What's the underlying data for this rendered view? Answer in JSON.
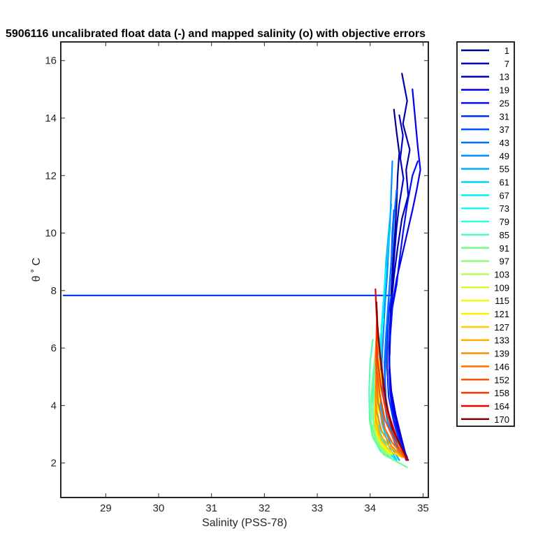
{
  "chart_data": {
    "type": "line",
    "title": "5906116 uncalibrated float data (-) and mapped salinity (o) with objective errors",
    "xlabel": "Salinity (PSS-78)",
    "ylabel": "θ ˚ C",
    "xlim": [
      28.15,
      35.1
    ],
    "ylim": [
      0.8,
      16.65
    ],
    "xticks": [
      29,
      30,
      31,
      32,
      33,
      34,
      35
    ],
    "yticks": [
      2,
      4,
      6,
      8,
      10,
      12,
      14,
      16
    ],
    "grid": false,
    "legend_position": "outside-right",
    "series": [
      {
        "name": "1",
        "color": "#00008f",
        "points": [
          [
            34.45,
            14.3
          ],
          [
            34.5,
            13.5
          ],
          [
            34.55,
            12.8
          ],
          [
            34.52,
            12.0
          ],
          [
            34.5,
            11.0
          ],
          [
            34.47,
            10.0
          ],
          [
            34.43,
            9.0
          ],
          [
            34.4,
            8.0
          ],
          [
            34.38,
            7.0
          ],
          [
            34.36,
            6.0
          ],
          [
            34.37,
            5.0
          ],
          [
            34.42,
            4.0
          ],
          [
            34.55,
            3.0
          ],
          [
            34.65,
            2.4
          ]
        ]
      },
      {
        "name": "7",
        "color": "#0000af",
        "points": [
          [
            34.6,
            15.55
          ],
          [
            34.7,
            14.6
          ],
          [
            34.62,
            13.8
          ],
          [
            34.75,
            12.9
          ],
          [
            34.68,
            12.2
          ],
          [
            34.72,
            11.3
          ],
          [
            34.6,
            10.5
          ],
          [
            34.52,
            9.5
          ],
          [
            34.45,
            8.5
          ],
          [
            34.4,
            7.5
          ],
          [
            34.38,
            6.5
          ],
          [
            34.36,
            5.5
          ],
          [
            34.4,
            4.5
          ],
          [
            34.5,
            3.5
          ],
          [
            34.62,
            2.6
          ],
          [
            34.68,
            2.2
          ]
        ]
      },
      {
        "name": "13",
        "color": "#0000cf",
        "points": [
          [
            34.55,
            14.1
          ],
          [
            34.62,
            13.4
          ],
          [
            34.57,
            12.6
          ],
          [
            34.63,
            11.9
          ],
          [
            34.55,
            11.0
          ],
          [
            34.5,
            10.2
          ],
          [
            34.46,
            9.3
          ],
          [
            34.42,
            8.3
          ],
          [
            34.39,
            7.2
          ],
          [
            34.37,
            6.2
          ],
          [
            34.36,
            5.2
          ],
          [
            34.4,
            4.2
          ],
          [
            34.52,
            3.2
          ],
          [
            34.66,
            2.3
          ]
        ]
      },
      {
        "name": "19",
        "color": "#0000ef",
        "points": [
          [
            34.8,
            15.0
          ],
          [
            34.85,
            14.0
          ],
          [
            34.9,
            13.0
          ],
          [
            34.95,
            12.2
          ],
          [
            34.88,
            11.5
          ],
          [
            34.8,
            10.8
          ],
          [
            34.7,
            10.0
          ],
          [
            34.6,
            9.2
          ],
          [
            34.5,
            8.4
          ],
          [
            34.42,
            7.5
          ],
          [
            34.38,
            6.6
          ],
          [
            34.36,
            5.6
          ],
          [
            34.38,
            4.7
          ],
          [
            34.48,
            3.7
          ],
          [
            34.6,
            2.8
          ],
          [
            34.7,
            2.1
          ]
        ]
      },
      {
        "name": "25",
        "color": "#000fff",
        "points": [
          [
            34.9,
            12.5
          ],
          [
            34.8,
            12.0
          ],
          [
            34.7,
            11.0
          ],
          [
            34.62,
            10.0
          ],
          [
            34.55,
            9.0
          ],
          [
            34.5,
            8.2
          ],
          [
            34.42,
            7.4
          ],
          [
            34.38,
            6.4
          ],
          [
            34.36,
            5.4
          ],
          [
            34.38,
            4.4
          ],
          [
            34.45,
            3.5
          ],
          [
            34.58,
            2.7
          ],
          [
            34.7,
            2.2
          ]
        ]
      },
      {
        "name": "31",
        "color": "#002fff",
        "points": [
          [
            28.2,
            7.83
          ],
          [
            34.4,
            7.83
          ],
          [
            34.35,
            7.2
          ],
          [
            34.33,
            6.3
          ],
          [
            34.32,
            5.3
          ],
          [
            34.35,
            4.3
          ],
          [
            34.45,
            3.4
          ],
          [
            34.58,
            2.6
          ],
          [
            34.68,
            2.1
          ]
        ]
      },
      {
        "name": "37",
        "color": "#004fff",
        "points": [
          [
            34.45,
            10.8
          ],
          [
            34.42,
            10.0
          ],
          [
            34.4,
            9.0
          ],
          [
            34.36,
            8.0
          ],
          [
            34.33,
            7.0
          ],
          [
            34.3,
            6.0
          ],
          [
            34.28,
            5.0
          ],
          [
            34.3,
            4.0
          ],
          [
            34.42,
            3.0
          ],
          [
            34.58,
            2.3
          ]
        ]
      },
      {
        "name": "43",
        "color": "#006fff",
        "points": [
          [
            34.5,
            11.5
          ],
          [
            34.45,
            10.5
          ],
          [
            34.42,
            9.5
          ],
          [
            34.38,
            8.5
          ],
          [
            34.34,
            7.5
          ],
          [
            34.3,
            6.5
          ],
          [
            34.27,
            5.5
          ],
          [
            34.28,
            4.5
          ],
          [
            34.36,
            3.5
          ],
          [
            34.5,
            2.7
          ],
          [
            34.62,
            2.2
          ]
        ]
      },
      {
        "name": "49",
        "color": "#008fff",
        "points": [
          [
            34.42,
            12.5
          ],
          [
            34.4,
            11.5
          ],
          [
            34.38,
            10.5
          ],
          [
            34.35,
            9.5
          ],
          [
            34.32,
            8.5
          ],
          [
            34.28,
            7.5
          ],
          [
            34.25,
            6.5
          ],
          [
            34.22,
            5.5
          ],
          [
            34.24,
            4.5
          ],
          [
            34.32,
            3.5
          ],
          [
            34.48,
            2.6
          ],
          [
            34.6,
            2.2
          ]
        ]
      },
      {
        "name": "55",
        "color": "#00afff",
        "points": [
          [
            34.4,
            11.0
          ],
          [
            34.35,
            10.0
          ],
          [
            34.3,
            9.0
          ],
          [
            34.27,
            8.0
          ],
          [
            34.23,
            7.0
          ],
          [
            34.2,
            6.0
          ],
          [
            34.18,
            5.0
          ],
          [
            34.2,
            4.0
          ],
          [
            34.28,
            3.2
          ],
          [
            34.42,
            2.5
          ],
          [
            34.55,
            2.1
          ]
        ]
      },
      {
        "name": "61",
        "color": "#00cfff",
        "points": [
          [
            34.38,
            10.2
          ],
          [
            34.33,
            9.3
          ],
          [
            34.28,
            8.3
          ],
          [
            34.24,
            7.3
          ],
          [
            34.2,
            6.3
          ],
          [
            34.17,
            5.3
          ],
          [
            34.16,
            4.3
          ],
          [
            34.22,
            3.4
          ],
          [
            34.35,
            2.6
          ],
          [
            34.5,
            2.1
          ]
        ]
      },
      {
        "name": "67",
        "color": "#00efff",
        "points": [
          [
            34.3,
            8.8
          ],
          [
            34.26,
            7.8
          ],
          [
            34.22,
            6.8
          ],
          [
            34.18,
            5.8
          ],
          [
            34.15,
            4.8
          ],
          [
            34.14,
            3.8
          ],
          [
            34.2,
            3.0
          ],
          [
            34.35,
            2.4
          ],
          [
            34.48,
            2.1
          ]
        ]
      },
      {
        "name": "73",
        "color": "#10ffef",
        "points": [
          [
            34.25,
            7.0
          ],
          [
            34.18,
            6.2
          ],
          [
            34.12,
            5.4
          ],
          [
            34.1,
            4.5
          ],
          [
            34.12,
            3.6
          ],
          [
            34.22,
            2.8
          ],
          [
            34.38,
            2.3
          ]
        ]
      },
      {
        "name": "79",
        "color": "#30ffcf",
        "points": [
          [
            34.15,
            6.1
          ],
          [
            34.08,
            5.3
          ],
          [
            34.05,
            4.4
          ],
          [
            34.06,
            3.5
          ],
          [
            34.15,
            2.8
          ],
          [
            34.3,
            2.4
          ]
        ]
      },
      {
        "name": "85",
        "color": "#50ffaf",
        "points": [
          [
            34.05,
            6.3
          ],
          [
            34.0,
            5.5
          ],
          [
            33.98,
            4.5
          ],
          [
            33.99,
            3.5
          ],
          [
            34.05,
            2.9
          ],
          [
            34.2,
            2.4
          ],
          [
            34.4,
            2.2
          ]
        ]
      },
      {
        "name": "91",
        "color": "#70ff8f",
        "points": [
          [
            34.12,
            6.0
          ],
          [
            34.06,
            5.2
          ],
          [
            34.02,
            4.3
          ],
          [
            34.02,
            3.4
          ],
          [
            34.1,
            2.8
          ],
          [
            34.25,
            2.3
          ],
          [
            34.45,
            2.1
          ],
          [
            34.7,
            1.85
          ]
        ]
      },
      {
        "name": "97",
        "color": "#8fff70",
        "points": [
          [
            34.15,
            5.6
          ],
          [
            34.1,
            4.8
          ],
          [
            34.06,
            4.0
          ],
          [
            34.07,
            3.2
          ],
          [
            34.15,
            2.7
          ],
          [
            34.3,
            2.3
          ]
        ]
      },
      {
        "name": "103",
        "color": "#afff50",
        "points": [
          [
            34.18,
            5.4
          ],
          [
            34.13,
            4.6
          ],
          [
            34.1,
            3.8
          ],
          [
            34.1,
            3.1
          ],
          [
            34.2,
            2.6
          ],
          [
            34.35,
            2.3
          ]
        ]
      },
      {
        "name": "109",
        "color": "#cfff30",
        "points": [
          [
            34.2,
            5.1
          ],
          [
            34.16,
            4.4
          ],
          [
            34.12,
            3.7
          ],
          [
            34.12,
            3.0
          ],
          [
            34.22,
            2.6
          ],
          [
            34.38,
            2.3
          ]
        ]
      },
      {
        "name": "115",
        "color": "#efff10",
        "points": [
          [
            34.22,
            5.0
          ],
          [
            34.18,
            4.3
          ],
          [
            34.14,
            3.6
          ],
          [
            34.15,
            3.0
          ],
          [
            34.25,
            2.6
          ],
          [
            34.42,
            2.3
          ]
        ]
      },
      {
        "name": "121",
        "color": "#ffef00",
        "points": [
          [
            34.2,
            5.2
          ],
          [
            34.15,
            4.5
          ],
          [
            34.12,
            3.8
          ],
          [
            34.12,
            3.1
          ],
          [
            34.22,
            2.7
          ],
          [
            34.4,
            2.4
          ],
          [
            34.6,
            2.2
          ]
        ]
      },
      {
        "name": "127",
        "color": "#ffcf00",
        "points": [
          [
            34.18,
            5.6
          ],
          [
            34.14,
            4.8
          ],
          [
            34.1,
            4.0
          ],
          [
            34.1,
            3.3
          ],
          [
            34.2,
            2.8
          ],
          [
            34.38,
            2.4
          ],
          [
            34.6,
            2.2
          ]
        ]
      },
      {
        "name": "133",
        "color": "#ffaf00",
        "points": [
          [
            34.15,
            6.0
          ],
          [
            34.12,
            5.2
          ],
          [
            34.1,
            4.4
          ],
          [
            34.1,
            3.6
          ],
          [
            34.18,
            3.0
          ],
          [
            34.35,
            2.6
          ],
          [
            34.55,
            2.3
          ]
        ]
      },
      {
        "name": "139",
        "color": "#ff8f00",
        "points": [
          [
            34.13,
            6.2
          ],
          [
            34.11,
            5.4
          ],
          [
            34.1,
            4.6
          ],
          [
            34.12,
            3.8
          ],
          [
            34.22,
            3.1
          ],
          [
            34.4,
            2.6
          ],
          [
            34.62,
            2.2
          ]
        ]
      },
      {
        "name": "146",
        "color": "#ff6f00",
        "points": [
          [
            34.12,
            6.5
          ],
          [
            34.1,
            5.7
          ],
          [
            34.12,
            4.9
          ],
          [
            34.15,
            4.1
          ],
          [
            34.25,
            3.3
          ],
          [
            34.42,
            2.7
          ],
          [
            34.65,
            2.2
          ]
        ]
      },
      {
        "name": "152",
        "color": "#ff4f00",
        "points": [
          [
            34.14,
            6.8
          ],
          [
            34.12,
            6.0
          ],
          [
            34.13,
            5.2
          ],
          [
            34.18,
            4.4
          ],
          [
            34.28,
            3.5
          ],
          [
            34.45,
            2.8
          ],
          [
            34.66,
            2.2
          ]
        ]
      },
      {
        "name": "158",
        "color": "#ff2f00",
        "points": [
          [
            34.13,
            7.3
          ],
          [
            34.12,
            6.5
          ],
          [
            34.14,
            5.6
          ],
          [
            34.2,
            4.7
          ],
          [
            34.3,
            3.8
          ],
          [
            34.45,
            3.0
          ],
          [
            34.68,
            2.2
          ]
        ]
      },
      {
        "name": "164",
        "color": "#ef0000",
        "points": [
          [
            34.1,
            8.05
          ],
          [
            34.12,
            7.2
          ],
          [
            34.15,
            6.4
          ],
          [
            34.2,
            5.5
          ],
          [
            34.25,
            4.6
          ],
          [
            34.35,
            3.7
          ],
          [
            34.5,
            2.9
          ],
          [
            34.7,
            2.1
          ]
        ]
      },
      {
        "name": "170",
        "color": "#8f0000",
        "points": [
          [
            34.12,
            7.6
          ],
          [
            34.14,
            6.8
          ],
          [
            34.18,
            5.9
          ],
          [
            34.24,
            5.0
          ],
          [
            34.3,
            4.1
          ],
          [
            34.42,
            3.2
          ],
          [
            34.6,
            2.5
          ],
          [
            34.72,
            2.1
          ]
        ]
      }
    ]
  }
}
